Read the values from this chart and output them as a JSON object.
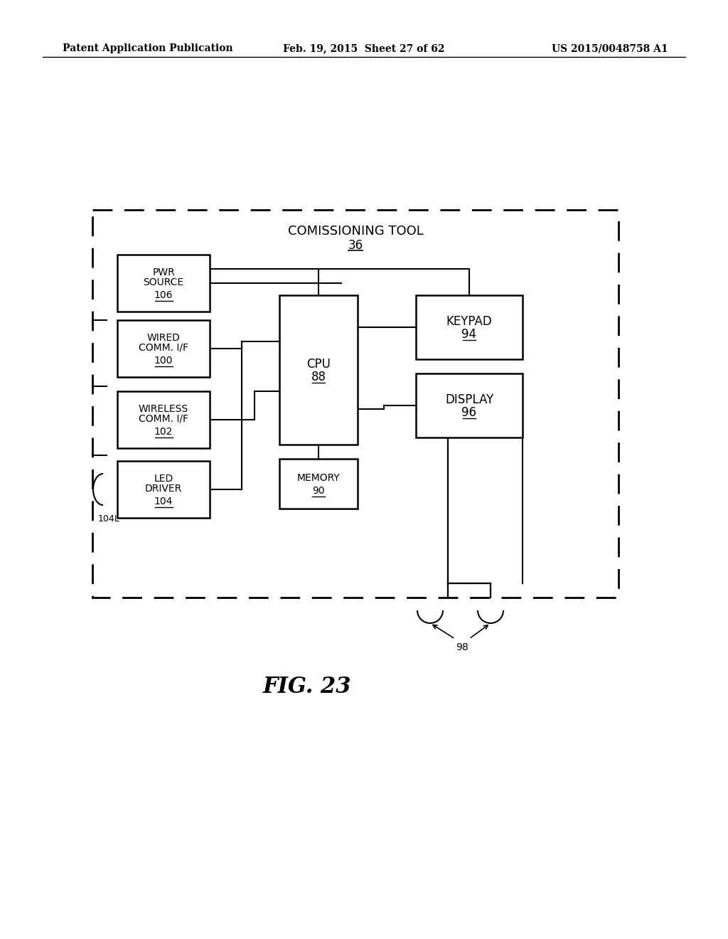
{
  "bg_color": "#ffffff",
  "header_left": "Patent Application Publication",
  "header_mid": "Feb. 19, 2015  Sheet 27 of 62",
  "header_right": "US 2015/0048758 A1",
  "figure_label": "FIG. 23",
  "title_text": "COMISSIONING TOOL",
  "title_ref": "36",
  "figsize": [
    10.24,
    13.2
  ],
  "dpi": 100
}
